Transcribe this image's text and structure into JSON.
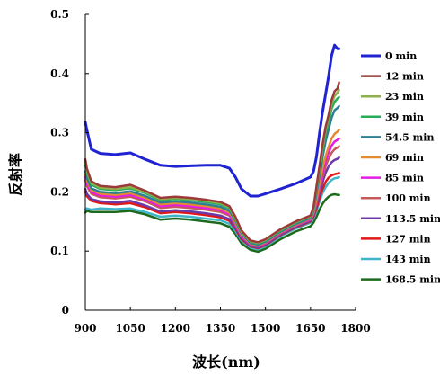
{
  "chart_data": {
    "type": "line",
    "title": "",
    "xlabel": "波长(nm)",
    "ylabel": "反射率",
    "xlim": [
      900,
      1800
    ],
    "ylim": [
      0,
      0.5
    ],
    "xticks": [
      900,
      1050,
      1200,
      1350,
      1500,
      1650,
      1800
    ],
    "xtick_labels": [
      "900",
      "1050",
      "1200",
      "1350",
      "1500",
      "1650",
      "1800"
    ],
    "yticks": [
      0,
      0.1,
      0.2,
      0.3,
      0.4,
      0.5
    ],
    "ytick_labels": [
      "0",
      "0.1",
      "0.2",
      "0.3",
      "0.4",
      "0.5"
    ],
    "grid": false,
    "legend": "right",
    "x": [
      900,
      905,
      920,
      950,
      1000,
      1050,
      1100,
      1150,
      1200,
      1250,
      1300,
      1350,
      1380,
      1400,
      1420,
      1450,
      1475,
      1500,
      1550,
      1600,
      1650,
      1660,
      1670,
      1680,
      1690,
      1700,
      1710,
      1720,
      1730,
      1740,
      1745
    ],
    "series": [
      {
        "name": "0 min",
        "color": "#1f23d2",
        "values": [
          0.318,
          0.305,
          0.272,
          0.265,
          0.263,
          0.266,
          0.255,
          0.245,
          0.243,
          0.244,
          0.245,
          0.245,
          0.24,
          0.225,
          0.205,
          0.193,
          0.193,
          0.197,
          0.205,
          0.214,
          0.225,
          0.235,
          0.26,
          0.3,
          0.335,
          0.365,
          0.395,
          0.43,
          0.448,
          0.442,
          0.442
        ]
      },
      {
        "name": "12 min",
        "color": "#9c3a3a",
        "values": [
          0.255,
          0.24,
          0.218,
          0.21,
          0.208,
          0.212,
          0.202,
          0.19,
          0.192,
          0.19,
          0.187,
          0.183,
          0.176,
          0.158,
          0.135,
          0.118,
          0.115,
          0.12,
          0.137,
          0.15,
          0.16,
          0.175,
          0.21,
          0.245,
          0.28,
          0.31,
          0.33,
          0.355,
          0.37,
          0.375,
          0.385
        ]
      },
      {
        "name": "23 min",
        "color": "#8fb04c",
        "values": [
          0.25,
          0.236,
          0.215,
          0.207,
          0.205,
          0.208,
          0.2,
          0.188,
          0.19,
          0.188,
          0.185,
          0.181,
          0.174,
          0.156,
          0.133,
          0.117,
          0.114,
          0.119,
          0.136,
          0.149,
          0.159,
          0.173,
          0.207,
          0.24,
          0.275,
          0.305,
          0.325,
          0.348,
          0.362,
          0.368,
          0.372
        ]
      },
      {
        "name": "39 min",
        "color": "#27ad5a",
        "values": [
          0.245,
          0.232,
          0.212,
          0.205,
          0.203,
          0.206,
          0.198,
          0.186,
          0.188,
          0.186,
          0.183,
          0.179,
          0.172,
          0.154,
          0.132,
          0.116,
          0.113,
          0.118,
          0.135,
          0.148,
          0.158,
          0.171,
          0.205,
          0.237,
          0.27,
          0.298,
          0.318,
          0.34,
          0.352,
          0.358,
          0.36
        ]
      },
      {
        "name": "54.5 min",
        "color": "#2e7e96",
        "values": [
          0.235,
          0.224,
          0.206,
          0.2,
          0.198,
          0.201,
          0.193,
          0.182,
          0.184,
          0.182,
          0.179,
          0.175,
          0.168,
          0.151,
          0.13,
          0.114,
          0.111,
          0.116,
          0.133,
          0.146,
          0.156,
          0.168,
          0.198,
          0.228,
          0.258,
          0.285,
          0.305,
          0.325,
          0.338,
          0.342,
          0.345
        ]
      },
      {
        "name": "69 min",
        "color": "#e58a2e",
        "values": [
          0.23,
          0.219,
          0.203,
          0.197,
          0.195,
          0.198,
          0.19,
          0.179,
          0.181,
          0.179,
          0.176,
          0.172,
          0.165,
          0.148,
          0.128,
          0.113,
          0.11,
          0.115,
          0.132,
          0.145,
          0.155,
          0.165,
          0.188,
          0.215,
          0.24,
          0.26,
          0.276,
          0.29,
          0.298,
          0.302,
          0.305
        ]
      },
      {
        "name": "85 min",
        "color": "#e41ce4",
        "values": [
          0.225,
          0.214,
          0.2,
          0.194,
          0.192,
          0.195,
          0.187,
          0.176,
          0.178,
          0.176,
          0.173,
          0.169,
          0.162,
          0.146,
          0.126,
          0.112,
          0.109,
          0.114,
          0.131,
          0.144,
          0.154,
          0.163,
          0.185,
          0.21,
          0.232,
          0.252,
          0.266,
          0.278,
          0.285,
          0.288,
          0.29
        ]
      },
      {
        "name": "100 min",
        "color": "#c65a5a",
        "values": [
          0.22,
          0.21,
          0.197,
          0.191,
          0.189,
          0.192,
          0.184,
          0.173,
          0.175,
          0.173,
          0.17,
          0.166,
          0.16,
          0.144,
          0.125,
          0.111,
          0.108,
          0.113,
          0.13,
          0.143,
          0.153,
          0.162,
          0.182,
          0.205,
          0.225,
          0.243,
          0.256,
          0.266,
          0.272,
          0.275,
          0.277
        ]
      },
      {
        "name": "113.5 min",
        "color": "#6a3aa8",
        "values": [
          0.205,
          0.197,
          0.188,
          0.184,
          0.182,
          0.185,
          0.177,
          0.167,
          0.169,
          0.167,
          0.164,
          0.16,
          0.154,
          0.14,
          0.122,
          0.109,
          0.106,
          0.111,
          0.128,
          0.141,
          0.151,
          0.16,
          0.178,
          0.198,
          0.216,
          0.232,
          0.243,
          0.25,
          0.254,
          0.256,
          0.258
        ]
      },
      {
        "name": "127 min",
        "color": "#e01818",
        "values": [
          0.2,
          0.193,
          0.185,
          0.181,
          0.179,
          0.181,
          0.174,
          0.164,
          0.166,
          0.164,
          0.161,
          0.157,
          0.151,
          0.138,
          0.12,
          0.108,
          0.105,
          0.11,
          0.127,
          0.14,
          0.15,
          0.158,
          0.172,
          0.19,
          0.205,
          0.217,
          0.224,
          0.228,
          0.23,
          0.231,
          0.232
        ]
      },
      {
        "name": "143 min",
        "color": "#3fb5c9",
        "values": [
          0.17,
          0.172,
          0.17,
          0.172,
          0.171,
          0.172,
          0.166,
          0.158,
          0.16,
          0.158,
          0.155,
          0.152,
          0.146,
          0.134,
          0.118,
          0.106,
          0.103,
          0.108,
          0.125,
          0.138,
          0.148,
          0.156,
          0.168,
          0.184,
          0.198,
          0.208,
          0.215,
          0.22,
          0.223,
          0.224,
          0.225
        ]
      },
      {
        "name": "168.5 min",
        "color": "#1c6a1c",
        "values": [
          0.165,
          0.168,
          0.166,
          0.166,
          0.166,
          0.168,
          0.162,
          0.153,
          0.155,
          0.153,
          0.15,
          0.147,
          0.141,
          0.129,
          0.113,
          0.102,
          0.099,
          0.104,
          0.12,
          0.133,
          0.142,
          0.148,
          0.158,
          0.17,
          0.18,
          0.187,
          0.192,
          0.195,
          0.196,
          0.195,
          0.195
        ]
      }
    ]
  }
}
